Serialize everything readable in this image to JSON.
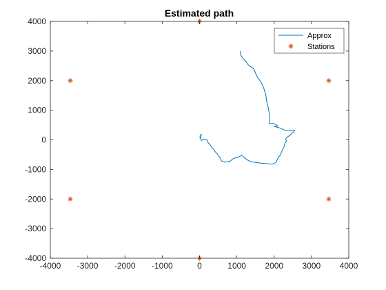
{
  "chart_data": {
    "type": "line",
    "title": "Estimated path",
    "xlabel": "",
    "ylabel": "",
    "xlim": [
      -4000,
      4000
    ],
    "ylim": [
      -4000,
      4000
    ],
    "xticks": [
      -4000,
      -3000,
      -2000,
      -1000,
      0,
      1000,
      2000,
      3000,
      4000
    ],
    "yticks": [
      -4000,
      -3000,
      -2000,
      -1000,
      0,
      1000,
      2000,
      3000,
      4000
    ],
    "grid": false,
    "legend_position": "top-right",
    "series": [
      {
        "name": "Approx",
        "kind": "line",
        "color": "#0072BD",
        "x": [
          1100,
          1100,
          1160,
          1240,
          1300,
          1360,
          1450,
          1500,
          1560,
          1650,
          1720,
          1780,
          1800,
          1850,
          1880,
          1870,
          1950,
          2050,
          2100,
          2000,
          2150,
          2300,
          2450,
          2550,
          2520,
          2480,
          2420,
          2350,
          2310,
          2330,
          2290,
          2260,
          2200,
          2160,
          2100,
          2050,
          1950,
          1850,
          1750,
          1650,
          1500,
          1380,
          1280,
          1200,
          1130,
          1080,
          1000,
          950,
          900,
          820,
          750,
          680,
          620,
          580,
          560,
          520,
          480,
          420,
          380,
          330,
          300,
          280,
          240,
          200,
          120,
          50,
          10,
          60,
          20,
          30,
          0
        ],
        "y": [
          3000,
          2880,
          2750,
          2650,
          2540,
          2480,
          2400,
          2250,
          2100,
          1950,
          1750,
          1500,
          1300,
          1050,
          750,
          540,
          560,
          520,
          460,
          450,
          400,
          320,
          300,
          320,
          250,
          240,
          150,
          90,
          30,
          -50,
          -120,
          -250,
          -400,
          -520,
          -620,
          -760,
          -820,
          -810,
          -800,
          -790,
          -760,
          -740,
          -680,
          -600,
          -520,
          -560,
          -600,
          -610,
          -640,
          -720,
          -740,
          -750,
          -740,
          -700,
          -620,
          -560,
          -480,
          -400,
          -320,
          -260,
          -200,
          -160,
          -120,
          0,
          20,
          -20,
          110,
          190,
          150,
          60,
          50
        ]
      },
      {
        "name": "Stations",
        "kind": "scatter",
        "marker": "*",
        "color": "#D95319",
        "x": [
          0,
          3464,
          3464,
          0,
          -3464,
          -3464
        ],
        "y": [
          4000,
          2000,
          -2000,
          -4000,
          -2000,
          2000
        ]
      }
    ]
  }
}
